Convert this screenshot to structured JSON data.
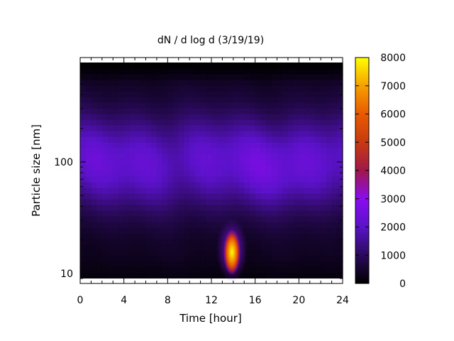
{
  "chart_data": {
    "type": "heatmap",
    "title": "dN / d log d (3/19/19)",
    "xlabel": "Time [hour]",
    "ylabel": "Particle size [nm]",
    "x_ticks": [
      0,
      4,
      8,
      12,
      16,
      20,
      24
    ],
    "x_range": [
      0,
      24
    ],
    "y_scale": "log",
    "y_range": [
      9,
      780
    ],
    "y_tick_values": [
      10,
      100
    ],
    "y_tick_labels": [
      "10",
      "100"
    ],
    "colorbar": {
      "range": [
        0,
        8000
      ],
      "ticks": [
        0,
        1000,
        2000,
        3000,
        4000,
        5000,
        6000,
        7000,
        8000
      ],
      "palette": "black-purple-red-orange-yellow"
    },
    "features": {
      "background_level_small_sizes": 1000,
      "background_level_mid_sizes": 2000,
      "peak": {
        "time_hour": 13.9,
        "size_nm": 15,
        "value": 7600
      }
    },
    "grid": false,
    "legend": "colorbar-right"
  },
  "colors": {
    "background": "#ffffff",
    "frame": "#000000",
    "scale_0": "#000000",
    "scale_mid": "#8a0cf0",
    "scale_high": "#e85a00",
    "scale_max": "#ffff00"
  }
}
